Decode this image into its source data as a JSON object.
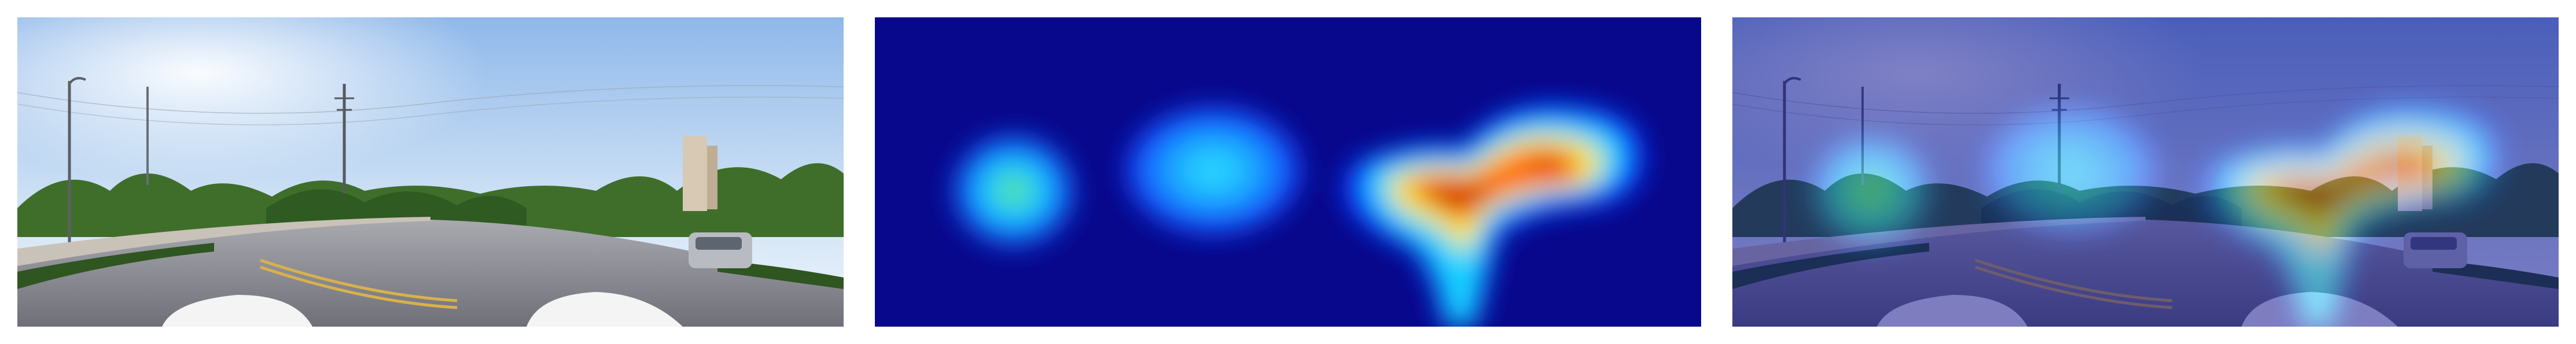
{
  "figure": {
    "panels": [
      {
        "id": "street-photo",
        "kind": "panorama"
      },
      {
        "id": "attention-heatmap",
        "kind": "heatmap",
        "colormap": "jet"
      },
      {
        "id": "heatmap-overlay",
        "kind": "panorama-with-heatmap"
      }
    ]
  },
  "scene": {
    "sky_color": "#7fb0e6",
    "road_color": "#8e8e96",
    "vegetation_color": "#3f6e2b",
    "lane_marking_color": "#d8b24a",
    "car_color": "#f4f4f4"
  },
  "heatmap": {
    "background_color": "#08088c",
    "hot_spots": [
      {
        "name": "left-blob",
        "peak_color": "#6fe06a",
        "intensity": 0.55
      },
      {
        "name": "middle-blob",
        "peak_color": "#2fe6ff",
        "intensity": 0.5
      },
      {
        "name": "right-blob",
        "peak_color": "#c80000",
        "intensity": 1.0
      }
    ]
  }
}
